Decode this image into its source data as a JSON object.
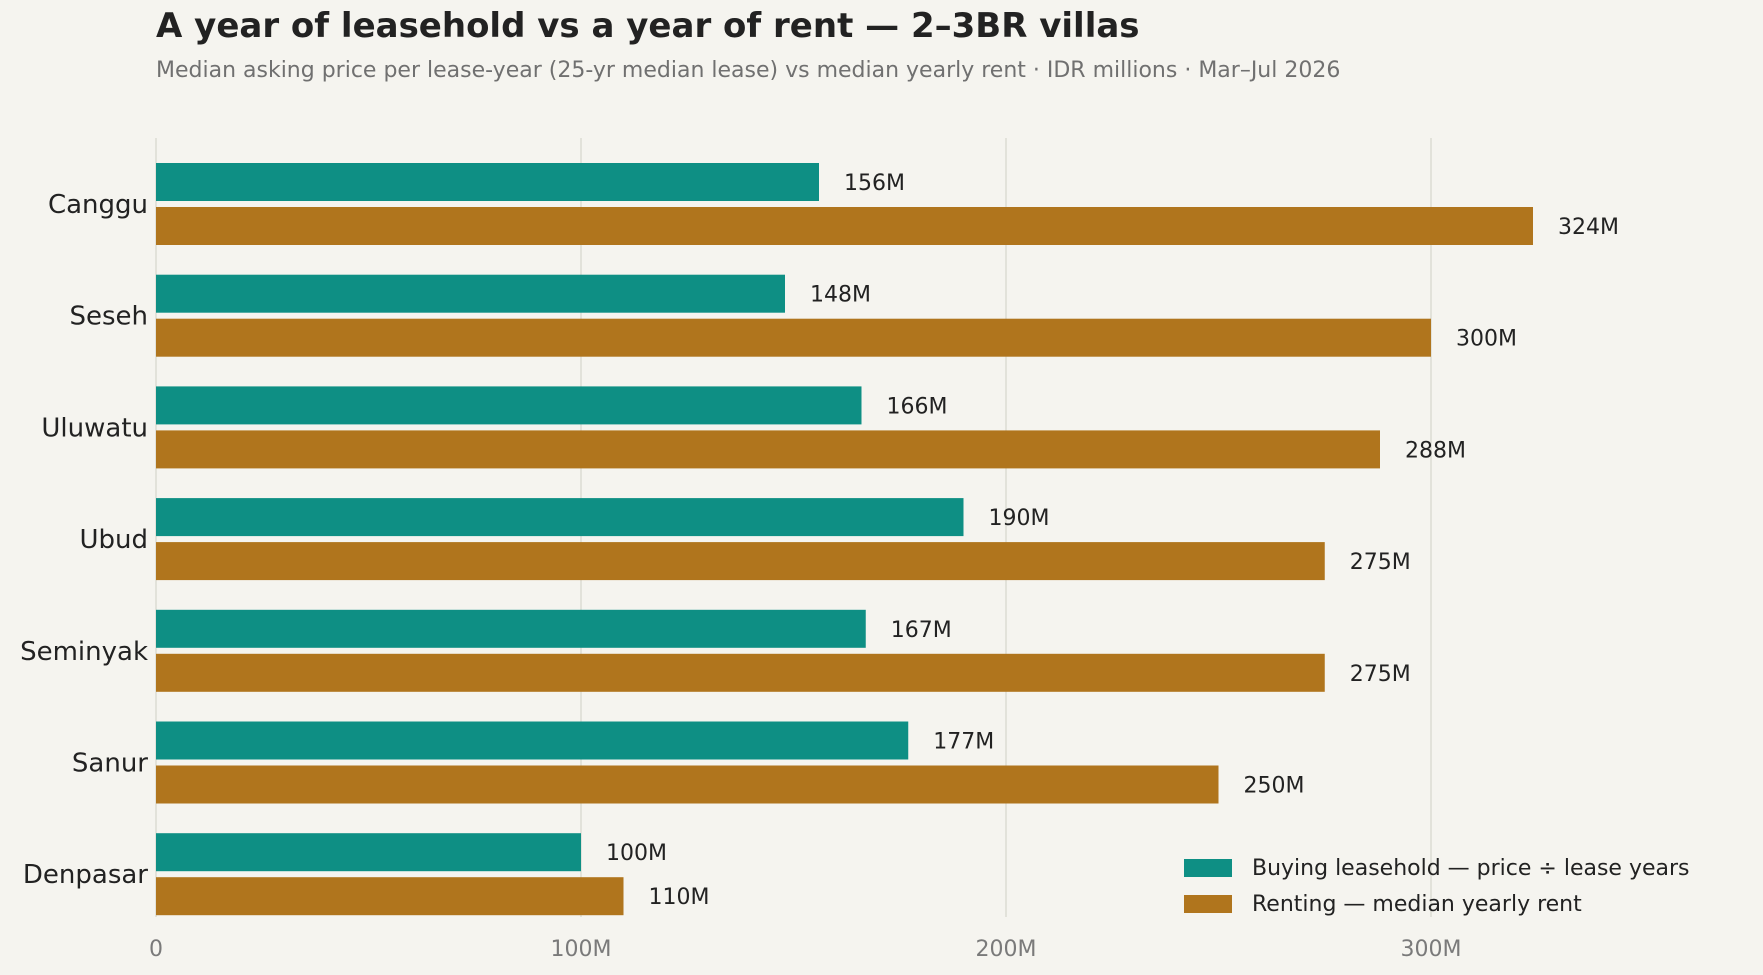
{
  "title": "A year of leasehold vs a year of rent — 2–3BR villas",
  "subtitle": "Median asking price per lease-year (25-yr median lease) vs median yearly rent · IDR millions · Mar–Jul 2026",
  "chart_data": {
    "type": "bar",
    "orientation": "horizontal",
    "categories": [
      "Canggu",
      "Seseh",
      "Uluwatu",
      "Ubud",
      "Seminyak",
      "Sanur",
      "Denpasar"
    ],
    "series": [
      {
        "name": "Buying leasehold — price ÷ lease years",
        "color": "#0e8f84",
        "values": [
          156,
          148,
          166,
          190,
          167,
          177,
          100
        ],
        "data_labels": [
          "156M",
          "148M",
          "166M",
          "190M",
          "167M",
          "177M",
          "100M"
        ]
      },
      {
        "name": "Renting — median yearly rent",
        "color": "#b0751d",
        "values": [
          324,
          300,
          288,
          275,
          275,
          250,
          110
        ],
        "data_labels": [
          "324M",
          "300M",
          "288M",
          "275M",
          "275M",
          "250M",
          "110M"
        ]
      }
    ],
    "x_ticks": [
      0,
      100,
      200,
      300
    ],
    "x_tick_labels": [
      "0",
      "100M",
      "200M",
      "300M"
    ],
    "xlim": [
      0,
      345
    ],
    "grid": "vertical",
    "legend_position": "bottom-right"
  }
}
